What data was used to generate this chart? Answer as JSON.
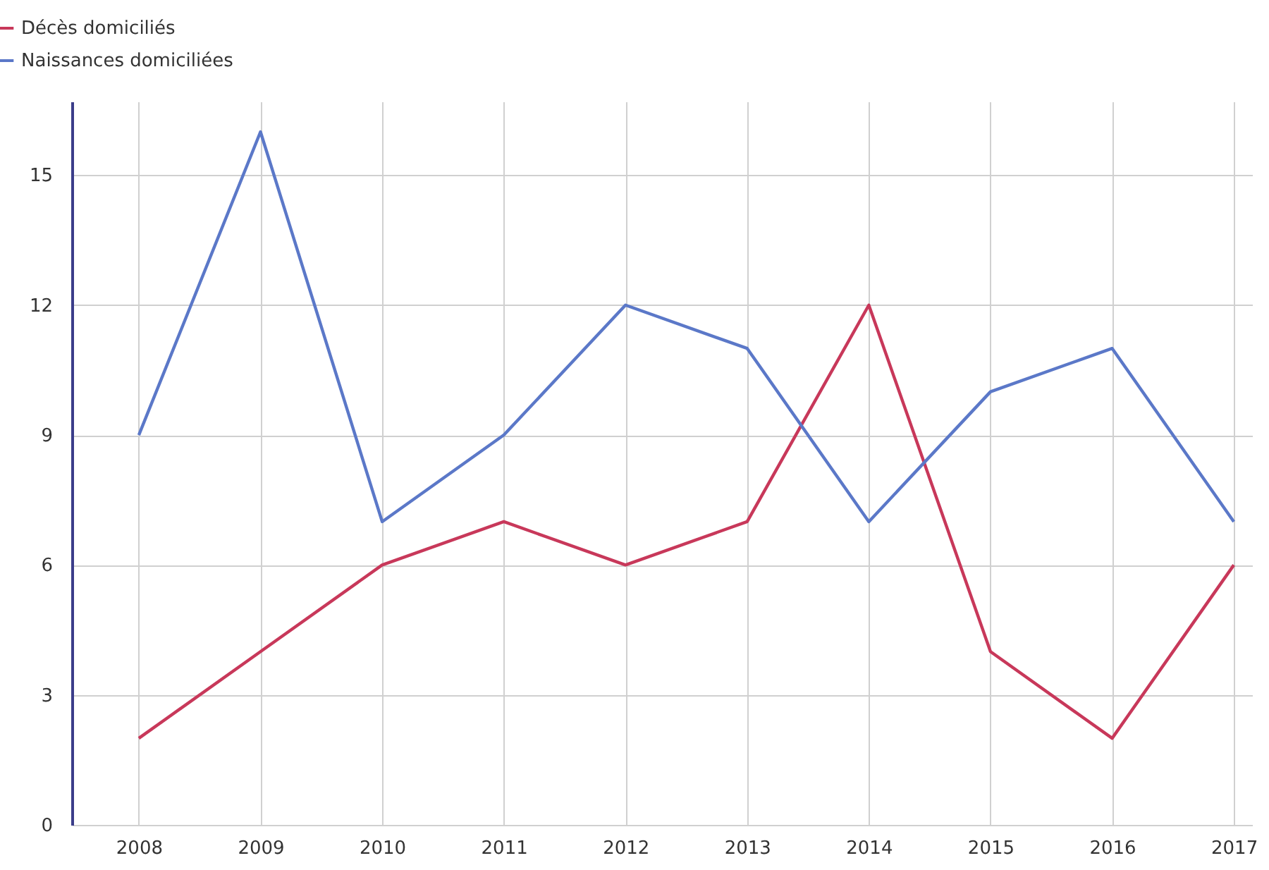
{
  "chart_data": {
    "type": "line",
    "categories": [
      "2008",
      "2009",
      "2010",
      "2011",
      "2012",
      "2013",
      "2014",
      "2015",
      "2016",
      "2017"
    ],
    "series": [
      {
        "name": "Décès domiciliés",
        "color": "#c8385a",
        "values": [
          2,
          4,
          6,
          7,
          6,
          7,
          12,
          4,
          2,
          6
        ]
      },
      {
        "name": "Naissances domiciliées",
        "color": "#5b78c8",
        "values": [
          9,
          16,
          7,
          9,
          12,
          11,
          7,
          10,
          11,
          7
        ]
      }
    ],
    "ylim": [
      0,
      16.7
    ],
    "yticks": [
      0,
      3,
      6,
      9,
      12,
      15
    ],
    "grid": true,
    "legend": "top left",
    "marker": "none",
    "line_style": "solid"
  }
}
